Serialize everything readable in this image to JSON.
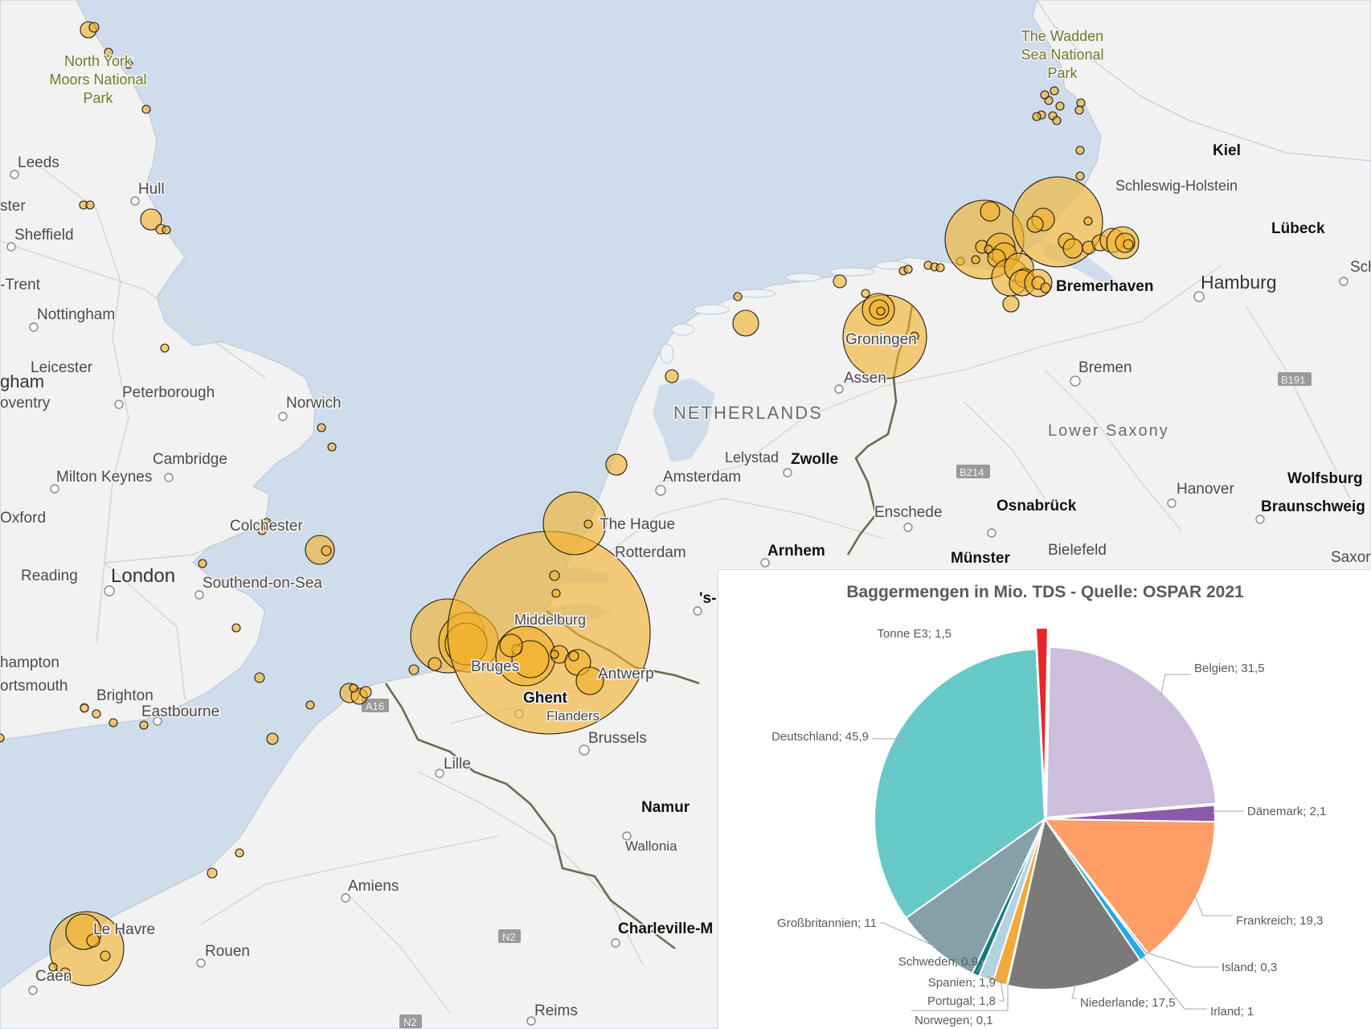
{
  "map": {
    "colors": {
      "sea": "#cfdceb",
      "land": "#f2f2f2",
      "border": "#6e6a52",
      "bubble": "#f2b12c",
      "road": "#d9d2c6"
    },
    "labels": {
      "north_york_moors": "North York\nMoors National\nPark",
      "wadden_sea_park": "The Wadden\nSea National\nPark",
      "leeds": "Leeds",
      "hull": "Hull",
      "ster": "ster",
      "sheffield": "Sheffield",
      "trent": "-Trent",
      "nottingham": "Nottingham",
      "leicester": "Leicester",
      "gham": "gham",
      "oventry": "oventry",
      "peterborough": "Peterborough",
      "norwich": "Norwich",
      "cambridge": "Cambridge",
      "milton_keynes": "Milton Keynes",
      "oxford": "Oxford",
      "colchester": "Colchester",
      "reading": "Reading",
      "london": "London",
      "southend": "Southend-on-Sea",
      "hampton": "hampton",
      "portsmouth": "ortsmouth",
      "brighton": "Brighton",
      "eastbourne": "Eastbourne",
      "kiel": "Kiel",
      "schleswig_holstein": "Schleswig-Holstein",
      "lubeck": "Lübeck",
      "sch": "Sch",
      "bremerhaven": "Bremerhaven",
      "hamburg": "Hamburg",
      "groningen": "Groningen",
      "assen": "Assen",
      "bremen": "Bremen",
      "netherlands": "NETHERLANDS",
      "lower_saxony": "Lower Saxony",
      "lelystad": "Lelystad",
      "zwolle": "Zwolle",
      "amsterdam": "Amsterdam",
      "hanover": "Hanover",
      "wolfsburg": "Wolfsburg",
      "braunschweig": "Braunschweig",
      "enschede": "Enschede",
      "osnabruck": "Osnabrück",
      "the_hague": "The Hague",
      "rotterdam": "Rotterdam",
      "arnhem": "Arnhem",
      "munster": "Münster",
      "bielefeld": "Bielefeld",
      "saxon": "Saxon",
      "s_dash": "'s-",
      "middelburg": "Middelburg",
      "bruges": "Bruges",
      "antwerp": "Antwerp",
      "ghent": "Ghent",
      "flanders": "Flanders",
      "brussels": "Brussels",
      "lille": "Lille",
      "namur": "Namur",
      "wallonia": "Wallonia",
      "amiens": "Amiens",
      "le_havre": "Le Havre",
      "rouen": "Rouen",
      "caen": "Caen",
      "charleville": "Charleville-M",
      "reims": "Reims"
    },
    "road_shields": {
      "a16": "A16",
      "b214": "B214",
      "b191": "B191",
      "n2_a": "N2",
      "n2_b": "N2"
    },
    "bubbles_description_values": []
  },
  "chart_data": {
    "type": "pie",
    "title": "Baggermengen in Mio. TDS - Quelle: OSPAR 2021",
    "slices": [
      {
        "label": "Belgien",
        "value": 31.5,
        "display": "Belgien; 31,5",
        "color": "#cdbedb"
      },
      {
        "label": "Dänemark",
        "value": 2.1,
        "display": "Dänemark; 2,1",
        "color": "#8c5aa8"
      },
      {
        "label": "Frankreich",
        "value": 19.3,
        "display": "Frankreich; 19,3",
        "color": "#ff9e66"
      },
      {
        "label": "Island",
        "value": 0.3,
        "display": "Island; 0,3",
        "color": "#5b7fb0"
      },
      {
        "label": "Irland",
        "value": 1,
        "display": "Irland; 1",
        "color": "#27a7e6"
      },
      {
        "label": "Niederlande",
        "value": 17.5,
        "display": "Niederlande; 17,5",
        "color": "#7a7a78"
      },
      {
        "label": "Norwegen",
        "value": 0.1,
        "display": "Norwegen; 0,1",
        "color": "#2f4f8f"
      },
      {
        "label": "Portugal",
        "value": 1.8,
        "display": "Portugal; 1,8",
        "color": "#f2a93b"
      },
      {
        "label": "Spanien",
        "value": 1.9,
        "display": "Spanien; 1,9",
        "color": "#b4d3e0"
      },
      {
        "label": "Schweden",
        "value": 0.9,
        "display": "Schweden; 0,9",
        "color": "#147a80"
      },
      {
        "label": "Großbritannien",
        "value": 11,
        "display": "Großbritannien; 11",
        "color": "#86a0aa"
      },
      {
        "label": "Deutschland",
        "value": 45.9,
        "display": "Deutschland; 45,9",
        "color": "#67c9c7"
      },
      {
        "label": "Tonne E3",
        "value": 1.5,
        "display": "Tonne E3; 1,5",
        "color": "#e8262a",
        "exploded": true
      }
    ]
  }
}
